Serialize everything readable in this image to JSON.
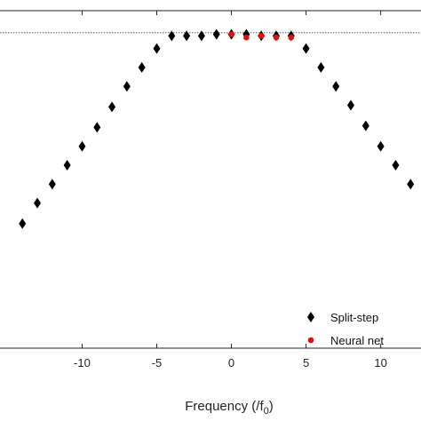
{
  "chart_data": {
    "type": "scatter",
    "xlabel_main": "Frequency (/f",
    "xlabel_sub": "0",
    "xlabel_end": ")",
    "xlim": [
      -15.5,
      12.7
    ],
    "ylim": [
      0,
      1.07
    ],
    "xticks": [
      -10,
      -5,
      0,
      5,
      10
    ],
    "xtick_labels": [
      "-10",
      "-5",
      "0",
      "5",
      "10"
    ],
    "reference_line_y": 1.0,
    "legend_position": "bottom-right",
    "series": [
      {
        "name": "Split-step",
        "marker": "diamond",
        "color": "#000000",
        "x": [
          -14,
          -13,
          -12,
          -11,
          -10,
          -9,
          -8,
          -7,
          -6,
          -5,
          -4,
          -3,
          -2,
          -1,
          0,
          1,
          2,
          3,
          4,
          5,
          6,
          7,
          8,
          9,
          10,
          11,
          12
        ],
        "y": [
          0.395,
          0.46,
          0.52,
          0.58,
          0.64,
          0.7,
          0.765,
          0.83,
          0.89,
          0.95,
          0.99,
          0.99,
          0.99,
          0.995,
          0.995,
          0.995,
          0.99,
          0.99,
          0.99,
          0.95,
          0.89,
          0.83,
          0.77,
          0.705,
          0.64,
          0.58,
          0.52
        ]
      },
      {
        "name": "Neural net",
        "marker": "circle",
        "color": "#e01010",
        "x": [
          0,
          1,
          2,
          3,
          4
        ],
        "y": [
          0.995,
          0.985,
          0.99,
          0.985,
          0.985
        ]
      }
    ]
  }
}
